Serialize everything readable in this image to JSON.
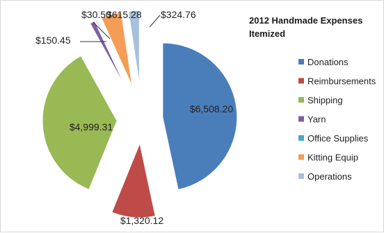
{
  "chart_data": {
    "type": "pie",
    "title": [
      "2012 Handmade Expenses",
      "Itemized"
    ],
    "legend_position": "right",
    "categories": [
      "Donations",
      "Reimbursements",
      "Shipping",
      "Yarn",
      "Office Supplies",
      "Kitting Equip",
      "Operations"
    ],
    "values": [
      6508.2,
      1320.12,
      4999.31,
      150.45,
      30.5,
      615.28,
      324.76
    ],
    "value_labels": [
      "$6,508.20",
      "$1,320.12",
      "$4,999.31",
      "$150.45",
      "$30.50",
      "$615.28",
      "$324.76"
    ],
    "colors": [
      "#4a7ebb",
      "#be4b48",
      "#98b954",
      "#7d60a0",
      "#46aac5",
      "#f59d56",
      "#a7c0de"
    ],
    "exploded": true
  }
}
